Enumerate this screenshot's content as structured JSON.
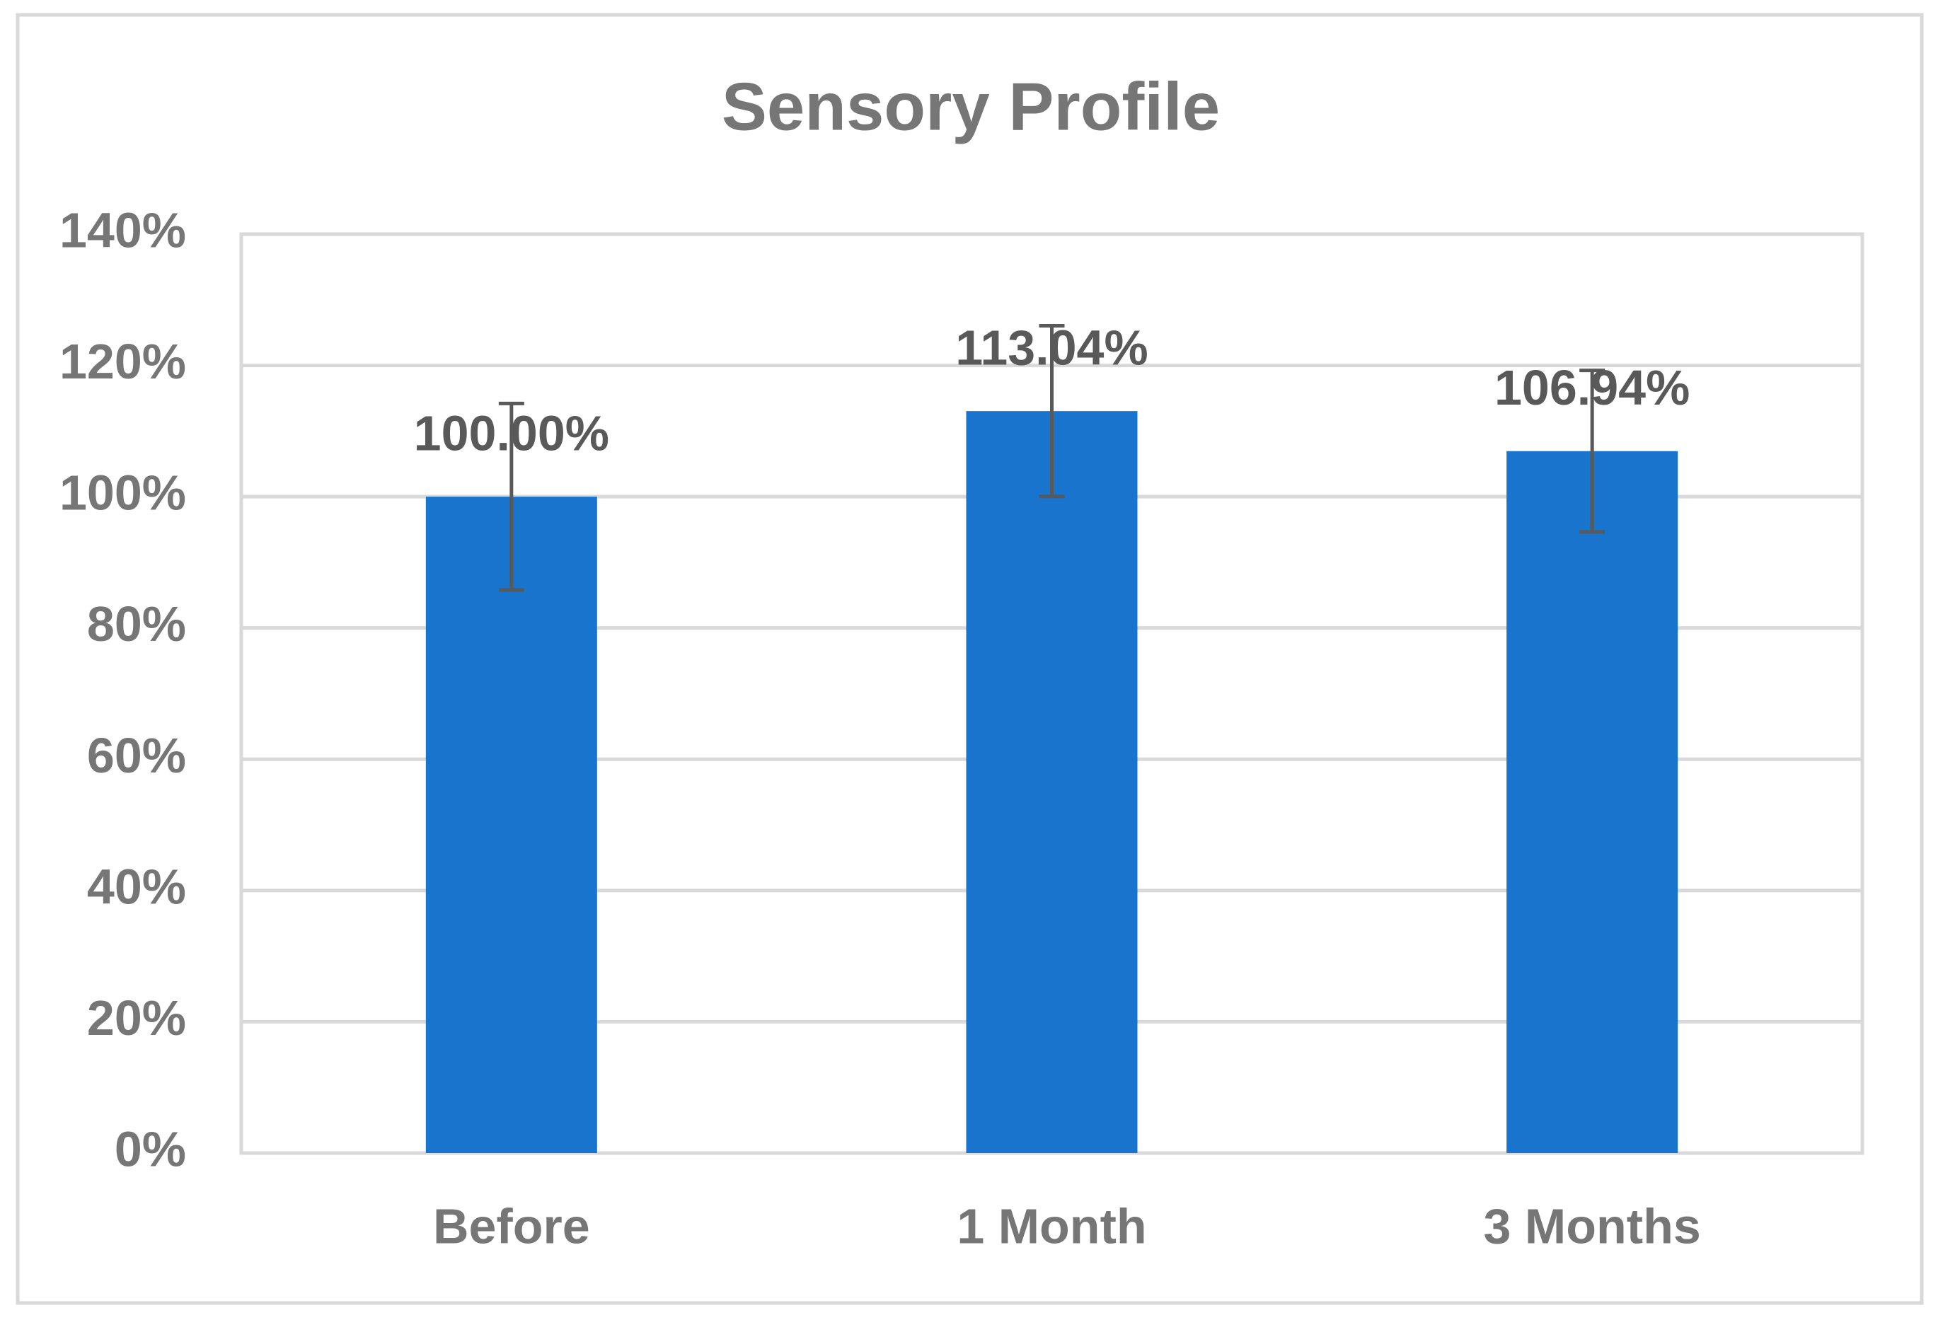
{
  "chart_data": {
    "type": "bar",
    "title": "Sensory Profile",
    "categories": [
      "Before",
      "1 Month",
      "3 Months"
    ],
    "values": [
      100,
      113.04,
      106.94
    ],
    "value_labels": [
      "100.00%",
      "113.04%",
      "106.94%"
    ],
    "errors": [
      14.2,
      13.0,
      12.3
    ],
    "color": "#1874cd",
    "ylim": [
      0,
      140
    ],
    "yticks": [
      {
        "value": 0,
        "label": "0%"
      },
      {
        "value": 20,
        "label": "20%"
      },
      {
        "value": 40,
        "label": "40%"
      },
      {
        "value": 60,
        "label": "60%"
      },
      {
        "value": 80,
        "label": "80%"
      },
      {
        "value": 100,
        "label": "100%"
      },
      {
        "value": 120,
        "label": "120%"
      },
      {
        "value": 140,
        "label": "140%"
      }
    ],
    "grid": true
  }
}
